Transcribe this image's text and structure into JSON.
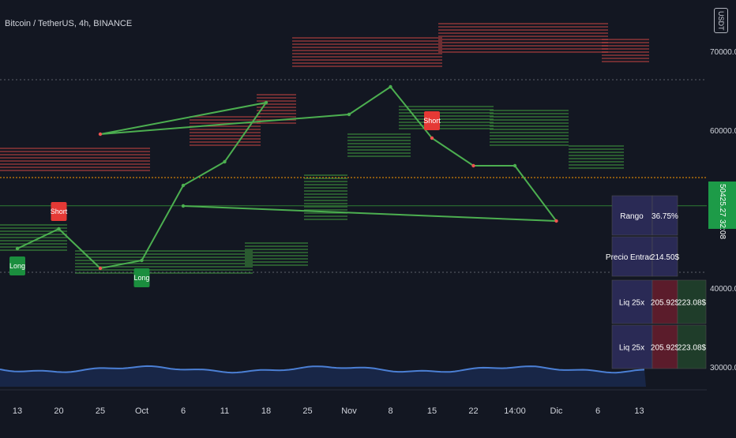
{
  "header": {
    "symbol_title": "Bitcoin / TetherUS, 4h, BINANCE",
    "currency": "USDT"
  },
  "last_price": {
    "value": "50425.27",
    "countdown": "32:08"
  },
  "table": {
    "rows": [
      {
        "label": "Rango",
        "value": "36.75%",
        "extra": ""
      },
      {
        "label": "Precio Entrada",
        "value": "214.50$",
        "extra": ""
      },
      {
        "label": "Liq 25x",
        "value": "205.92$",
        "extra": "223.08$"
      },
      {
        "label": "Liq 25x",
        "value": "205.92$",
        "extra": "223.08$"
      }
    ]
  },
  "colors": {
    "background": "#131722",
    "up": "#4caf50",
    "down": "#ef5350",
    "orange": "#ff9800",
    "short_band": "#b5413f",
    "long_band": "#3c8f3a",
    "volume_line": "#4b7fd4",
    "table_bg": "#2a2a55",
    "liq_red": "#5b1c2b",
    "liq_green": "#1f3d2a"
  },
  "chart_data": {
    "type": "line",
    "title": "",
    "xlabel": "",
    "ylabel": "",
    "ylim": [
      26500,
      76500
    ],
    "y_ticks": [
      "70000.00",
      "60000.00",
      "40000.00",
      "30000.00"
    ],
    "x_ticks": [
      "13",
      "20",
      "25",
      "Oct",
      "6",
      "11",
      "18",
      "25",
      "Nov",
      "8",
      "15",
      "22",
      "14:00",
      "Dic",
      "6",
      "13"
    ],
    "series": [
      {
        "x": [
          "13",
          "20",
          "25",
          "Oct",
          "6",
          "11",
          "18",
          "25",
          "Nov",
          "8",
          "15",
          "22",
          "14:00",
          "Dic",
          "6",
          "13"
        ],
        "values": [
          45000,
          47500,
          42500,
          43500,
          53000,
          56000,
          63500,
          59500,
          62000,
          65500,
          59000,
          55500,
          55500,
          48500,
          50400,
          null
        ]
      }
    ],
    "reference_lines": [
      {
        "value": 66400,
        "style": "dotted"
      },
      {
        "value": 54000,
        "style": "dotted-orange"
      },
      {
        "value": 50425,
        "style": "solid-green"
      },
      {
        "value": 42000,
        "style": "dotted"
      }
    ],
    "signals": [
      {
        "label": "Short",
        "x": "20",
        "type": "short"
      },
      {
        "label": "Long",
        "x": "13",
        "type": "long"
      },
      {
        "label": "Long",
        "x": "Oct",
        "type": "long"
      },
      {
        "label": "Short",
        "x": "15",
        "type": "short"
      }
    ]
  }
}
